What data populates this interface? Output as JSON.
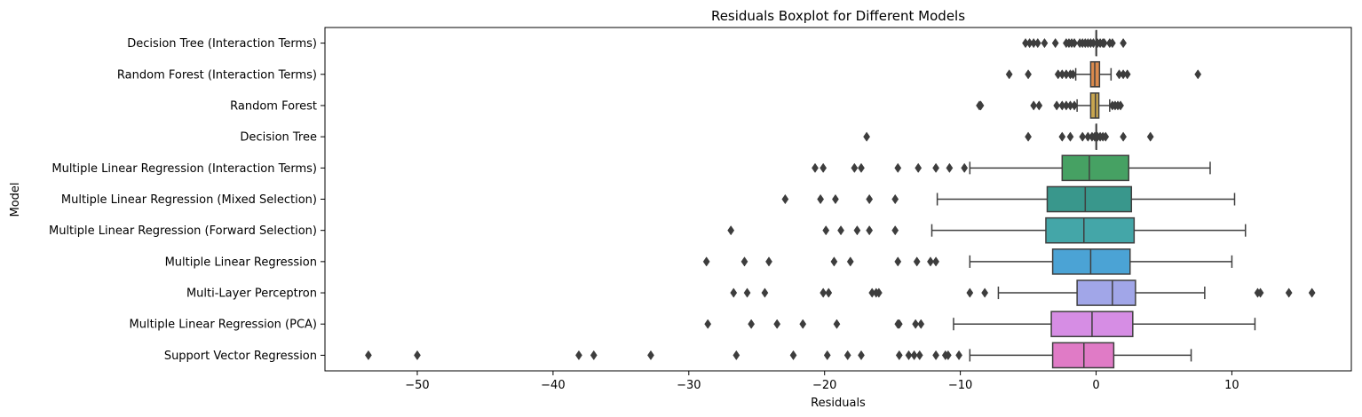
{
  "chart_data": {
    "type": "boxplot",
    "orientation": "horizontal",
    "title": "Residuals Boxplot for Different Models",
    "xlabel": "Residuals",
    "ylabel": "Model",
    "xlim": [
      -56.8,
      18.8
    ],
    "xticks": [
      -50,
      -40,
      -30,
      -20,
      -10,
      0,
      10
    ],
    "xtick_labels": [
      "−50",
      "−40",
      "−30",
      "−20",
      "−10",
      "0",
      "10"
    ],
    "grid": false,
    "series": [
      {
        "name": "Decision Tree (Interaction Terms)",
        "color": "#3a76b3",
        "whisker_low": 0,
        "q1": 0,
        "median": 0,
        "q3": 0,
        "whisker_high": 0,
        "outliers": [
          -5.2,
          -4.9,
          -4.6,
          -4.3,
          -3.8,
          -3.0,
          -2.2,
          -2.0,
          -1.8,
          -1.6,
          -1.2,
          -1.0,
          -0.8,
          -0.6,
          -0.4,
          -0.2,
          0.1,
          0.3,
          0.5,
          0.6,
          1.0,
          1.2,
          2.0
        ]
      },
      {
        "name": "Random Forest (Interaction Terms)",
        "color": "#db8a4d",
        "whisker_low": -1.5,
        "q1": -0.4,
        "median": -0.1,
        "q3": 0.25,
        "whisker_high": 1.1,
        "outliers": [
          -6.4,
          -5.0,
          -2.8,
          -2.5,
          -2.2,
          -1.9,
          -1.7,
          1.7,
          2.0,
          2.3,
          7.5
        ]
      },
      {
        "name": "Random Forest",
        "color": "#c8a650",
        "whisker_low": -1.4,
        "q1": -0.4,
        "median": -0.05,
        "q3": 0.2,
        "whisker_high": 1.0,
        "outliers": [
          -8.6,
          -8.5,
          -4.6,
          -4.2,
          -2.9,
          -2.5,
          -2.2,
          -1.9,
          -1.6,
          1.2,
          1.4,
          1.6,
          1.8
        ]
      },
      {
        "name": "Decision Tree",
        "color": "#3a76b3",
        "whisker_low": 0,
        "q1": 0,
        "median": 0,
        "q3": 0,
        "whisker_high": 0,
        "outliers": [
          -16.9,
          -5.0,
          -2.5,
          -1.9,
          -1.0,
          -0.6,
          -0.3,
          -0.1,
          0.1,
          0.3,
          0.5,
          0.7,
          2.0,
          4.0
        ]
      },
      {
        "name": "Multiple Linear Regression (Interaction Terms)",
        "color": "#46a163",
        "whisker_low": -9.3,
        "q1": -2.5,
        "median": -0.5,
        "q3": 2.4,
        "whisker_high": 8.4,
        "outliers": [
          -20.7,
          -20.1,
          -17.8,
          -17.3,
          -14.6,
          -13.1,
          -11.8,
          -10.8,
          -9.7
        ]
      },
      {
        "name": "Multiple Linear Regression (Mixed Selection)",
        "color": "#39978c",
        "whisker_low": -11.7,
        "q1": -3.6,
        "median": -0.8,
        "q3": 2.6,
        "whisker_high": 10.2,
        "outliers": [
          -22.9,
          -20.3,
          -19.2,
          -16.7,
          -14.8
        ]
      },
      {
        "name": "Multiple Linear Regression (Forward Selection)",
        "color": "#44a6a8",
        "whisker_low": -12.1,
        "q1": -3.7,
        "median": -0.9,
        "q3": 2.8,
        "whisker_high": 11.0,
        "outliers": [
          -26.9,
          -19.9,
          -18.8,
          -17.6,
          -16.7,
          -14.8
        ]
      },
      {
        "name": "Multiple Linear Regression",
        "color": "#4ba3d5",
        "whisker_low": -9.3,
        "q1": -3.2,
        "median": -0.4,
        "q3": 2.5,
        "whisker_high": 10.0,
        "outliers": [
          -28.7,
          -25.9,
          -24.1,
          -19.3,
          -18.1,
          -14.6,
          -13.2,
          -12.2,
          -11.8
        ]
      },
      {
        "name": "Multi-Layer Perceptron",
        "color": "#a1a6e8",
        "whisker_low": -7.2,
        "q1": -1.4,
        "median": 1.2,
        "q3": 2.9,
        "whisker_high": 8.0,
        "outliers": [
          -26.7,
          -25.7,
          -24.4,
          -20.1,
          -19.7,
          -16.5,
          -16.2,
          -16.0,
          -9.3,
          -8.2,
          11.9,
          12.1,
          14.2,
          15.9
        ]
      },
      {
        "name": "Multiple Linear Regression (PCA)",
        "color": "#d68de4",
        "whisker_low": -10.5,
        "q1": -3.3,
        "median": -0.3,
        "q3": 2.7,
        "whisker_high": 11.7,
        "outliers": [
          -28.6,
          -25.4,
          -23.5,
          -21.6,
          -19.1,
          -14.6,
          -14.5,
          -13.3,
          -12.9
        ]
      },
      {
        "name": "Support Vector Regression",
        "color": "#e07bc6",
        "whisker_low": -9.3,
        "q1": -3.2,
        "median": -0.9,
        "q3": 1.3,
        "whisker_high": 7.0,
        "outliers": [
          -53.6,
          -50.0,
          -38.1,
          -37.0,
          -32.8,
          -26.5,
          -22.3,
          -19.8,
          -18.3,
          -17.3,
          -14.5,
          -13.8,
          -13.4,
          -13.0,
          -11.8,
          -11.1,
          -10.9,
          -10.1
        ]
      }
    ]
  }
}
